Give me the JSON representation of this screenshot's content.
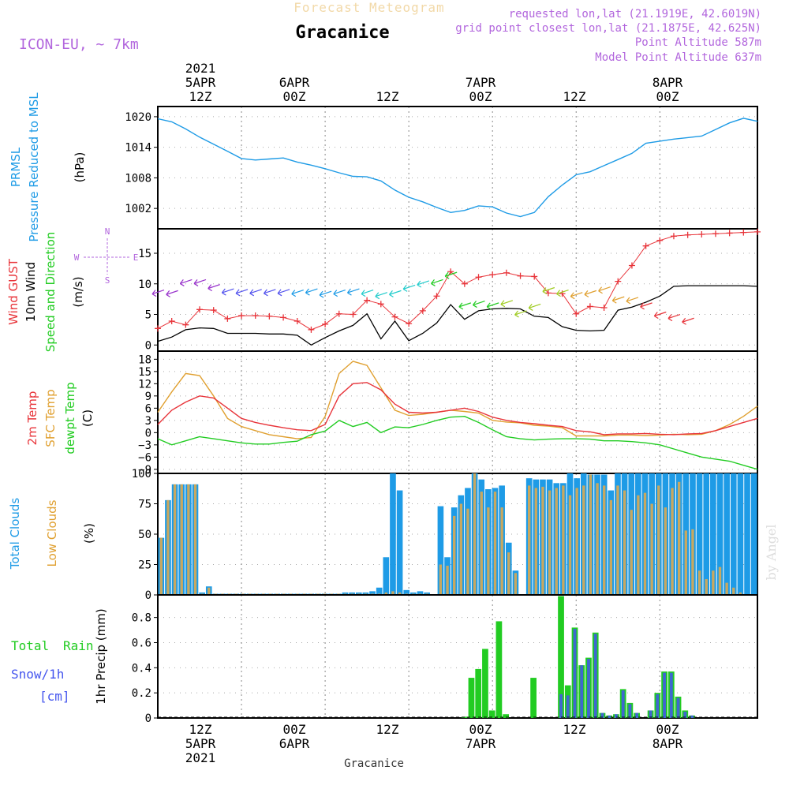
{
  "header": {
    "top_title": "Forecast Meteogram",
    "location": "Gracanice",
    "model": "ICON-EU, ~ 7km",
    "requested": "requested lon,lat (21.1919E, 42.6019N)",
    "grid_point": "grid point closest lon,lat (21.1875E, 42.625N)",
    "point_alt": "Point Altitude 587m",
    "model_alt": "Model Point Altitude 637m",
    "footer_location": "Gracanice",
    "watermark": "by Angel"
  },
  "time_axis": {
    "year": "2021",
    "ticks": [
      {
        "t": 12,
        "hour": "12Z",
        "day": "5APR",
        "year": "2021"
      },
      {
        "t": 24,
        "hour": "00Z",
        "day": "6APR"
      },
      {
        "t": 36,
        "hour": "12Z"
      },
      {
        "t": 48,
        "hour": "00Z",
        "day": "7APR"
      },
      {
        "t": 60,
        "hour": "12Z"
      },
      {
        "t": 72,
        "hour": "00Z",
        "day": "8APR"
      }
    ]
  },
  "colors": {
    "pressure": "#1e9be6",
    "gust": "#e8343a",
    "wind": "#000000",
    "temp2m": "#e8343a",
    "sfc": "#e0a030",
    "dewpt": "#22cc22",
    "total_cloud": "#1e9be6",
    "low_cloud": "#c8a860",
    "rain": "#22cc22",
    "snow": "#4455ee",
    "label_purple": "#b266dd"
  },
  "panel_labels": {
    "pressure": {
      "a": "PRMSL",
      "b": "Pressure Reduced to MSL",
      "unit": "(hPa)"
    },
    "wind": {
      "a": "Wind GUST",
      "b": "10m Wind",
      "c": "Speed and Direction",
      "unit": "(m/s)",
      "compass_n": "N",
      "compass_s": "S",
      "compass_w": "W",
      "compass_e": "E"
    },
    "temp": {
      "a": "2m Temp",
      "b": "SFC Temp",
      "c": "dewpt Temp",
      "unit": "(C)"
    },
    "cloud": {
      "a": "Total Clouds",
      "b": "Low Clouds",
      "unit": "(%)"
    },
    "precip": {
      "a": "Total",
      "b": "Rain",
      "c": "Snow/1h",
      "d": "[cm]",
      "ylabel": "1hr Precip (mm)"
    }
  },
  "chart_data": [
    {
      "type": "line",
      "name": "pressure",
      "ylim": [
        998,
        1022
      ],
      "yticks": [
        1002,
        1008,
        1014,
        1020
      ],
      "series": [
        {
          "name": "PRMSL",
          "x": [
            0,
            2,
            4,
            6,
            8,
            10,
            12,
            14,
            16,
            18,
            20,
            22,
            24,
            26,
            28,
            30,
            32,
            34,
            36,
            38,
            40,
            42,
            44,
            46,
            48,
            50,
            52,
            54,
            56,
            58,
            60,
            62,
            64,
            66,
            68,
            70,
            72,
            74,
            76,
            78,
            80,
            82,
            84,
            86
          ],
          "y": [
            1019.6,
            1019,
            1017.6,
            1016,
            1014.6,
            1013.2,
            1011.8,
            1011.5,
            1011.7,
            1011.9,
            1011.1,
            1010.5,
            1009.8,
            1009.0,
            1008.3,
            1008.2,
            1007.4,
            1005.6,
            1004.2,
            1003.3,
            1002.2,
            1001.2,
            1001.6,
            1002.5,
            1002.3,
            1001.1,
            1000.4,
            1001.2,
            1004.3,
            1006.6,
            1008.6,
            1009.2,
            1010.4,
            1011.6,
            1012.8,
            1014.8,
            1015.2,
            1015.6,
            1015.9,
            1016.2,
            1017.5,
            1018.8,
            1019.7,
            1019.1
          ]
        }
      ]
    },
    {
      "type": "line",
      "name": "wind",
      "ylim": [
        -1,
        19
      ],
      "yticks": [
        0,
        5,
        10,
        15
      ],
      "series": [
        {
          "name": "Wind GUST",
          "x": [
            0,
            2,
            4,
            6,
            8,
            10,
            12,
            14,
            16,
            18,
            20,
            22,
            24,
            26,
            28,
            30,
            32,
            34,
            36,
            38,
            40,
            42,
            44,
            46,
            48,
            50,
            52,
            54,
            56,
            58,
            60,
            62,
            64,
            66,
            68,
            70,
            72,
            74,
            76,
            78,
            80,
            82,
            84,
            86
          ],
          "y": [
            2.7,
            3.9,
            3.3,
            5.8,
            5.7,
            4.3,
            4.8,
            4.8,
            4.7,
            4.5,
            3.9,
            2.5,
            3.4,
            5.1,
            5.0,
            7.3,
            6.7,
            4.6,
            3.5,
            5.6,
            8.0,
            12.0,
            10.0,
            11.1,
            11.5,
            11.8,
            11.3,
            11.2,
            8.5,
            8.4,
            5.1,
            6.3,
            6.1,
            10.4,
            13.0,
            16.2,
            17.1,
            17.8,
            18.0,
            18.1,
            18.2,
            18.3,
            18.4,
            18.5
          ]
        },
        {
          "name": "10m Wind",
          "x": [
            0,
            2,
            4,
            6,
            8,
            10,
            12,
            14,
            16,
            18,
            20,
            22,
            24,
            26,
            28,
            30,
            32,
            34,
            36,
            38,
            40,
            42,
            44,
            46,
            48,
            50,
            52,
            54,
            56,
            58,
            60,
            62,
            64,
            66,
            68,
            70,
            72,
            74,
            76,
            78,
            80,
            82,
            84,
            86
          ],
          "y": [
            0.6,
            1.3,
            2.5,
            2.8,
            2.7,
            1.9,
            1.9,
            1.9,
            1.8,
            1.8,
            1.6,
            0.0,
            1.2,
            2.3,
            3.2,
            5.1,
            1.0,
            3.9,
            0.7,
            1.9,
            3.6,
            6.6,
            4.2,
            5.6,
            5.9,
            6.0,
            5.9,
            4.7,
            4.5,
            3.0,
            2.4,
            2.3,
            2.4,
            5.7,
            6.2,
            7.0,
            8.0,
            9.6,
            9.7,
            9.7,
            9.7,
            9.7,
            9.7,
            9.6
          ]
        }
      ]
    },
    {
      "type": "line",
      "name": "temperature",
      "ylim": [
        -10,
        20
      ],
      "yticks": [
        -9,
        -6,
        -3,
        0,
        3,
        6,
        9,
        12,
        15,
        18
      ],
      "series": [
        {
          "name": "2m Temp",
          "x": [
            0,
            2,
            4,
            6,
            8,
            10,
            12,
            14,
            16,
            18,
            20,
            22,
            24,
            26,
            28,
            30,
            32,
            34,
            36,
            38,
            40,
            42,
            44,
            46,
            48,
            50,
            52,
            54,
            56,
            58,
            60,
            62,
            64,
            66,
            68,
            70,
            72,
            74,
            76,
            78,
            80,
            82,
            84,
            86
          ],
          "y": [
            2.0,
            5.5,
            7.5,
            9.0,
            8.5,
            6.0,
            3.5,
            2.5,
            1.8,
            1.2,
            0.7,
            0.5,
            2.0,
            9.0,
            12.0,
            12.3,
            10.5,
            7.0,
            5.0,
            4.8,
            5.0,
            5.5,
            6.0,
            5.2,
            3.8,
            3.0,
            2.5,
            2.2,
            1.8,
            1.5,
            0.5,
            0.2,
            -0.5,
            -0.3,
            -0.3,
            -0.2,
            -0.4,
            -0.5,
            -0.3,
            -0.2,
            0.5,
            1.5,
            2.5,
            3.5
          ]
        },
        {
          "name": "SFC Temp",
          "x": [
            0,
            2,
            4,
            6,
            8,
            10,
            12,
            14,
            16,
            18,
            20,
            22,
            24,
            26,
            28,
            30,
            32,
            34,
            36,
            38,
            40,
            42,
            44,
            46,
            48,
            50,
            52,
            54,
            56,
            58,
            60,
            62,
            64,
            66,
            68,
            70,
            72,
            74,
            76,
            78,
            80,
            82,
            84,
            86
          ],
          "y": [
            5.0,
            10.0,
            14.5,
            14.0,
            9.0,
            3.5,
            1.5,
            0.5,
            -0.5,
            -1.0,
            -1.5,
            -1.2,
            4.0,
            14.5,
            17.5,
            16.5,
            11.0,
            5.5,
            4.2,
            4.5,
            5.0,
            5.5,
            5.2,
            4.8,
            3.0,
            2.6,
            2.4,
            1.8,
            1.6,
            1.2,
            -0.8,
            -0.8,
            -0.8,
            -0.6,
            -0.6,
            -0.7,
            -0.6,
            -0.4,
            -0.5,
            -0.4,
            0.5,
            2.0,
            4.0,
            6.5
          ]
        },
        {
          "name": "dewpt Temp",
          "x": [
            0,
            2,
            4,
            6,
            8,
            10,
            12,
            14,
            16,
            18,
            20,
            22,
            24,
            26,
            28,
            30,
            32,
            34,
            36,
            38,
            40,
            42,
            44,
            46,
            48,
            50,
            52,
            54,
            56,
            58,
            60,
            62,
            64,
            66,
            68,
            70,
            72,
            74,
            76,
            78,
            80,
            82,
            84,
            86
          ],
          "y": [
            -1.5,
            -3.0,
            -2.0,
            -1.0,
            -1.5,
            -2.0,
            -2.5,
            -2.8,
            -2.8,
            -2.4,
            -2.1,
            -0.5,
            0.4,
            3.0,
            1.5,
            2.5,
            0.0,
            1.4,
            1.2,
            2.0,
            3.0,
            3.8,
            4.0,
            2.5,
            0.7,
            -1.0,
            -1.5,
            -1.8,
            -1.6,
            -1.5,
            -1.5,
            -1.6,
            -2.0,
            -2.0,
            -2.2,
            -2.5,
            -3.0,
            -4.0,
            -5.0,
            -6.0,
            -6.5,
            -7.0,
            -8.0,
            -9.0
          ]
        }
      ]
    },
    {
      "type": "bar",
      "name": "clouds",
      "ylim": [
        0,
        100
      ],
      "yticks": [
        0,
        25,
        50,
        75,
        100
      ],
      "series": [
        {
          "name": "Total Clouds",
          "values": [
            47,
            78,
            91,
            91,
            91,
            91,
            2,
            7,
            1,
            1,
            1,
            1,
            1,
            1,
            1,
            1,
            1,
            1,
            1,
            1,
            1,
            1,
            1,
            1,
            1,
            1,
            1,
            2,
            2,
            2,
            2,
            3,
            6,
            31,
            100,
            86,
            4,
            2,
            3,
            2,
            0,
            73,
            31,
            72,
            82,
            88,
            100,
            95,
            87,
            88,
            90,
            43,
            20,
            0,
            96,
            95,
            95,
            95,
            92,
            92,
            100,
            96,
            100,
            99,
            99,
            99,
            86,
            100,
            100,
            100,
            100,
            100,
            100,
            100,
            100,
            100,
            100,
            100,
            100,
            100,
            100,
            100,
            100,
            100,
            100,
            100,
            100,
            100
          ]
        },
        {
          "name": "Low Clouds",
          "values": [
            47,
            78,
            91,
            91,
            91,
            91,
            1,
            6,
            1,
            1,
            1,
            1,
            1,
            1,
            1,
            1,
            1,
            1,
            1,
            1,
            1,
            1,
            1,
            1,
            1,
            1,
            1,
            1,
            1,
            1,
            1,
            1,
            1,
            2,
            3,
            2,
            1,
            1,
            1,
            1,
            0,
            25,
            24,
            65,
            75,
            71,
            100,
            85,
            72,
            85,
            72,
            35,
            18,
            0,
            90,
            88,
            89,
            86,
            88,
            90,
            82,
            88,
            90,
            99,
            92,
            90,
            78,
            90,
            86,
            70,
            82,
            84,
            75,
            90,
            72,
            88,
            93,
            53,
            54,
            20,
            13,
            20,
            23,
            10,
            6,
            2,
            0,
            0
          ]
        }
      ]
    },
    {
      "type": "bar",
      "name": "precip",
      "ylim": [
        0,
        0.98
      ],
      "yticks": [
        0,
        0.2,
        0.4,
        0.6,
        0.8
      ],
      "series": [
        {
          "name": "Total Rain",
          "values": [
            0,
            0,
            0,
            0,
            0,
            0,
            0,
            0,
            0,
            0,
            0,
            0,
            0,
            0,
            0,
            0,
            0,
            0,
            0,
            0,
            0,
            0,
            0,
            0,
            0,
            0,
            0,
            0,
            0,
            0,
            0,
            0,
            0,
            0,
            0,
            0,
            0,
            0,
            0,
            0,
            0,
            0,
            0,
            0,
            0.01,
            0.32,
            0.39,
            0.55,
            0.06,
            0.77,
            0.03,
            0,
            0,
            0,
            0.32,
            0,
            0,
            0,
            0.97,
            0.26,
            0.72,
            0.42,
            0.48,
            0.68,
            0.04,
            0.02,
            0.03,
            0.23,
            0.12,
            0.04,
            0,
            0.06,
            0.2,
            0.37,
            0.37,
            0.17,
            0.06,
            0.02,
            0,
            0,
            0,
            0,
            0,
            0,
            0,
            0,
            0
          ]
        },
        {
          "name": "Snow/1h",
          "values": [
            0,
            0,
            0,
            0,
            0,
            0,
            0,
            0,
            0,
            0,
            0,
            0,
            0,
            0,
            0,
            0,
            0,
            0,
            0,
            0,
            0,
            0,
            0,
            0,
            0,
            0,
            0,
            0,
            0,
            0,
            0,
            0,
            0,
            0,
            0,
            0,
            0,
            0,
            0,
            0,
            0,
            0,
            0,
            0,
            0,
            0,
            0,
            0,
            0,
            0,
            0,
            0,
            0,
            0,
            0,
            0,
            0,
            0,
            0.19,
            0.18,
            0.71,
            0.42,
            0.47,
            0.67,
            0.04,
            0.02,
            0.03,
            0.22,
            0.11,
            0.04,
            0,
            0.06,
            0.19,
            0.36,
            0.36,
            0.16,
            0.05,
            0.02,
            0,
            0,
            0,
            0,
            0,
            0,
            0,
            0,
            0
          ]
        }
      ]
    },
    {
      "type": "scatter",
      "name": "wind_barbs",
      "series": [
        {
          "name": "10m wind direction arrows",
          "x": [
            0,
            2,
            4,
            6,
            8,
            10,
            12,
            14,
            16,
            18,
            20,
            22,
            24,
            26,
            28,
            30,
            32,
            34,
            36,
            38,
            40,
            42,
            44,
            46,
            48,
            50,
            52,
            54,
            56,
            58,
            60,
            62,
            64,
            66,
            68,
            70,
            72,
            74,
            76
          ],
          "y": [
            8.6,
            8.5,
            10.3,
            10.3,
            9.5,
            8.8,
            8.7,
            8.7,
            8.7,
            8.7,
            8.6,
            8.8,
            8.4,
            8.6,
            8.8,
            8.6,
            8.2,
            8.5,
            9.4,
            10.1,
            10.3,
            11.5,
            6.5,
            6.8,
            6.5,
            6.9,
            5.2,
            6.3,
            9.0,
            8.6,
            8.2,
            8.5,
            9.1,
            7.5,
            7.4,
            6.5,
            5.0,
            4.6,
            4.0
          ]
        }
      ]
    }
  ]
}
